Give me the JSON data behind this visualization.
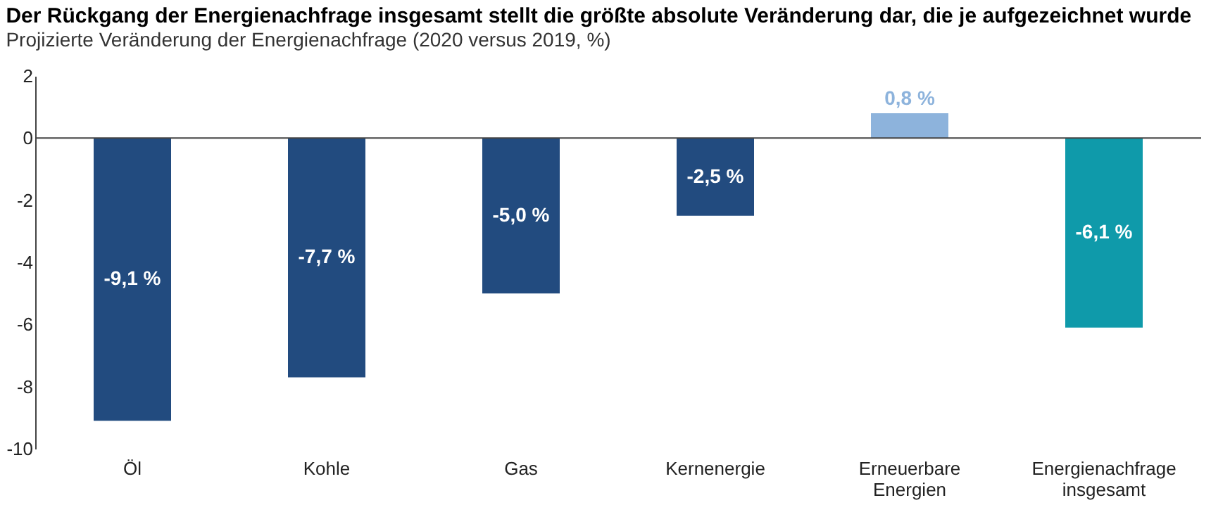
{
  "chart_data": {
    "type": "bar",
    "title": "Der Rückgang der Energienachfrage insgesamt stellt die größte absolute Veränderung dar, die je aufgezeichnet wurde",
    "subtitle": "Projizierte Veränderung der Energienachfrage (2020 versus 2019, %)",
    "categories": [
      "Öl",
      "Kohle",
      "Gas",
      "Kernenergie",
      "Erneuerbare Energien",
      "Energienachfrage insgesamt"
    ],
    "values": [
      -9.1,
      -7.7,
      -5.0,
      -2.5,
      0.8,
      -6.1
    ],
    "value_labels": [
      "-9,1 %",
      "-7,7 %",
      "-5,0 %",
      "-2,5 %",
      "0,8 %",
      "-6,1 %"
    ],
    "colors": [
      "#224b7f",
      "#224b7f",
      "#224b7f",
      "#224b7f",
      "#8db3dc",
      "#0f9aaa"
    ],
    "ref_lines": [
      {
        "axis": "y",
        "value": 0,
        "color": "#444444"
      }
    ],
    "ylim": [
      -10,
      2
    ],
    "yticks": [
      -10,
      -8,
      -6,
      -4,
      -2,
      0,
      2
    ],
    "grid": false
  }
}
